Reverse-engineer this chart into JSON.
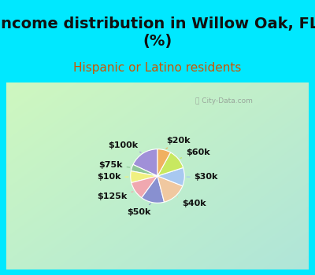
{
  "title": "Income distribution in Willow Oak, FL\n(%)",
  "subtitle": "Hispanic or Latino residents",
  "watermark": "City-Data.com",
  "slices": [
    {
      "label": "$100k",
      "value": 18,
      "color": "#a090d8"
    },
    {
      "label": "$75k",
      "value": 4,
      "color": "#90c898"
    },
    {
      "label": "$10k",
      "value": 7,
      "color": "#f0f080"
    },
    {
      "label": "$125k",
      "value": 11,
      "color": "#f0a8b0"
    },
    {
      "label": "$50k",
      "value": 14,
      "color": "#8890d0"
    },
    {
      "label": "$40k",
      "value": 15,
      "color": "#f0c8a0"
    },
    {
      "label": "$30k",
      "value": 11,
      "color": "#a8c8f0"
    },
    {
      "label": "$60k",
      "value": 12,
      "color": "#c8e860"
    },
    {
      "label": "$20k",
      "value": 8,
      "color": "#f0b060"
    }
  ],
  "cyan_border": "#00e8ff",
  "border_width": 8,
  "chart_bg_colors": [
    "#b0e8e0",
    "#d8f0d0",
    "#e8f8e8",
    "#f5fcf5"
  ],
  "title_fontsize": 14,
  "subtitle_fontsize": 11,
  "subtitle_color": "#cc5500",
  "label_fontsize": 8,
  "startangle": 90
}
